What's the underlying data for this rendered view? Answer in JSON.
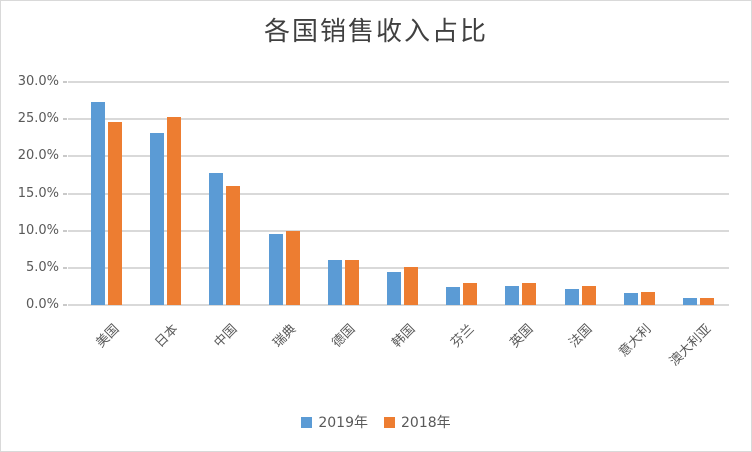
{
  "chart": {
    "title": "各国销售收入占比"
  },
  "colors": {
    "background": "#FFFFFF",
    "frame_border": "#D9D9D9",
    "gridline": "#D9D9D9",
    "axis_text": "#595959",
    "title_text": "#404040",
    "series_2019": "#5B9BD5",
    "series_2018": "#ED7D31"
  },
  "chart_data": {
    "type": "bar",
    "title": "各国销售收入占比",
    "categories": [
      "美国",
      "日本",
      "中国",
      "瑞典",
      "德国",
      "韩国",
      "芬兰",
      "英国",
      "法国",
      "意大利",
      "澳大利亚"
    ],
    "series": [
      {
        "name": "2019年",
        "color": "#5B9BD5",
        "values": [
          27.3,
          23.1,
          17.7,
          9.5,
          6.0,
          4.5,
          2.4,
          2.6,
          2.2,
          1.6,
          0.9
        ]
      },
      {
        "name": "2018年",
        "color": "#ED7D31",
        "values": [
          24.6,
          25.3,
          16.0,
          10.0,
          6.0,
          5.1,
          2.9,
          3.0,
          2.5,
          1.8,
          1.0
        ]
      }
    ],
    "xlabel": "",
    "ylabel": "",
    "ylim": [
      0,
      30
    ],
    "ytick_step": 5,
    "ytick_labels": [
      "0.0%",
      "5.0%",
      "10.0%",
      "15.0%",
      "20.0%",
      "25.0%",
      "30.0%"
    ],
    "value_unit": "percent",
    "grid": true,
    "legend_position": "bottom"
  }
}
